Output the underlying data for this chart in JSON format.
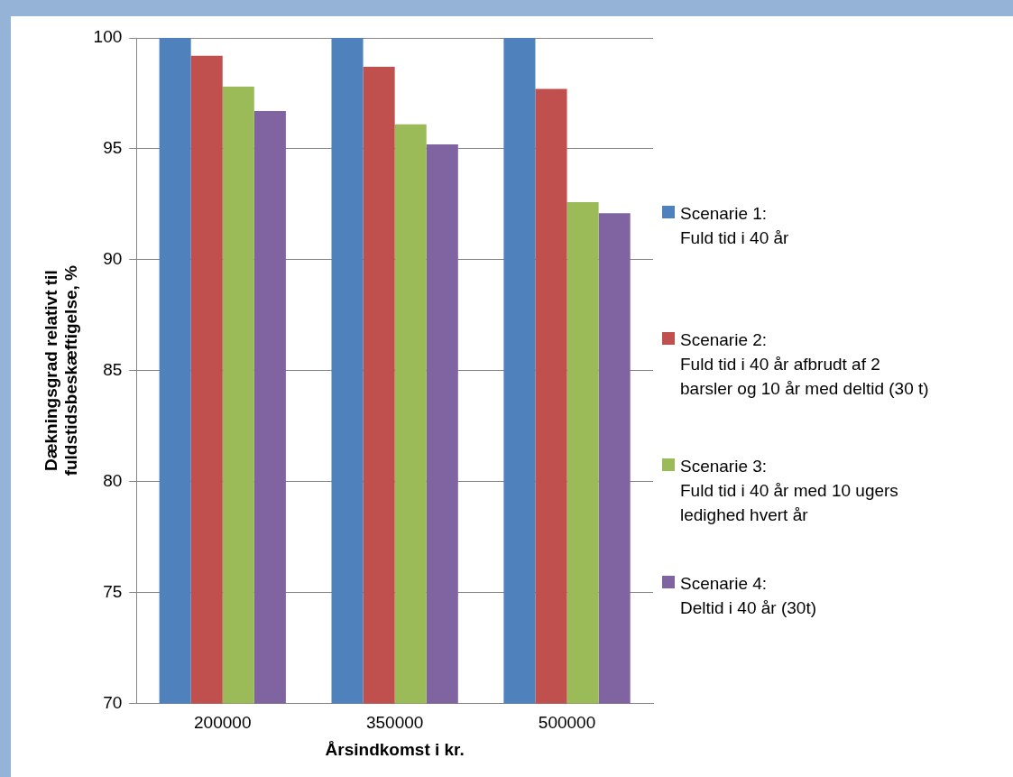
{
  "chart_data": {
    "type": "bar",
    "xlabel": "Årsindkomst i kr.",
    "ylabel": "Dækningsgrad relativt til\nfuldstidsbeskæftigelse, %",
    "categories": [
      "200000",
      "350000",
      "500000"
    ],
    "series": [
      {
        "name": "Scenarie 1:\nFuld tid i 40 år",
        "color": "#4f81bd",
        "values": [
          100,
          100,
          100
        ]
      },
      {
        "name": "Scenarie 2:\nFuld tid i 40 år afbrudt af 2\nbarsler og 10 år med deltid (30 t)",
        "color": "#c0504d",
        "values": [
          99.2,
          98.7,
          97.7
        ]
      },
      {
        "name": "Scenarie 3:\nFuld tid i 40 år med 10 ugers\nledighed hvert år",
        "color": "#9bbb59",
        "values": [
          97.8,
          96.1,
          92.6
        ]
      },
      {
        "name": "Scenarie 4:\nDeltid i 40 år (30t)",
        "color": "#8064a2",
        "values": [
          96.7,
          95.2,
          92.1
        ]
      }
    ],
    "ylim": [
      70,
      100
    ],
    "yticks": [
      70,
      75,
      80,
      85,
      90,
      95,
      100
    ],
    "grid": "y",
    "legend": "right"
  }
}
